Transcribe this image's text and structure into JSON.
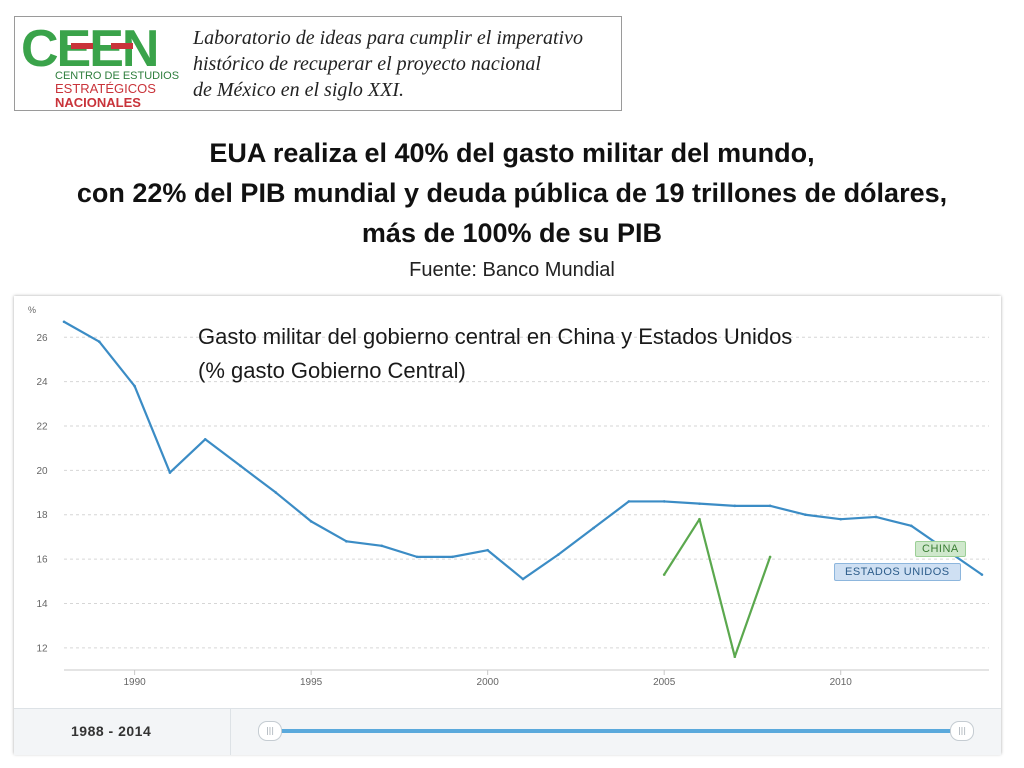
{
  "header": {
    "logo_letters": "CEEN",
    "logo_sub_lines": [
      "CENTRO DE ESTUDIOS",
      "ESTRATÉGICOS",
      "NACIONALES"
    ],
    "tagline_lines": [
      "Laboratorio de ideas para cumplir el imperativo",
      "histórico de recuperar el proyecto nacional",
      "de México en el siglo XXI."
    ],
    "headline_lines": [
      "EUA realiza el 40% del gasto militar del mundo,",
      "con 22% del PIB mundial y deuda pública de 19 trillones de dólares,",
      "más de 100% de su PIB"
    ],
    "source": "Fuente: Banco Mundial"
  },
  "chart_data": {
    "type": "line",
    "title_lines": [
      "Gasto militar del gobierno central en China y Estados Unidos",
      "(% gasto Gobierno Central)"
    ],
    "ylabel": "%",
    "ylim": [
      11,
      27.5
    ],
    "yticks": [
      12,
      14,
      16,
      18,
      20,
      22,
      24,
      26
    ],
    "xlim": [
      1988,
      2014.2
    ],
    "xticks": [
      1990,
      1995,
      2000,
      2005,
      2010
    ],
    "grid": true,
    "colors": {
      "estados_unidos": "#3b8cc5",
      "china": "#5ba84e"
    },
    "series": [
      {
        "name": "ESTADOS UNIDOS",
        "x": [
          1988,
          1989,
          1990,
          1991,
          1992,
          1993,
          1994,
          1995,
          1996,
          1997,
          1998,
          1999,
          2000,
          2001,
          2002,
          2003,
          2004,
          2005,
          2006,
          2007,
          2008,
          2009,
          2010,
          2011,
          2012,
          2013,
          2014
        ],
        "y": [
          26.7,
          25.8,
          23.8,
          19.9,
          21.4,
          20.2,
          19.0,
          17.7,
          16.8,
          16.6,
          16.1,
          16.1,
          16.4,
          15.1,
          16.2,
          17.4,
          18.6,
          18.6,
          18.5,
          18.4,
          18.4,
          18.0,
          17.8,
          17.9,
          17.5,
          16.4,
          15.3
        ]
      },
      {
        "name": "CHINA",
        "x": [
          2005,
          2006,
          2007,
          2008
        ],
        "y": [
          15.3,
          17.8,
          11.6,
          16.1
        ]
      }
    ],
    "range_label": "1988 - 2014"
  }
}
